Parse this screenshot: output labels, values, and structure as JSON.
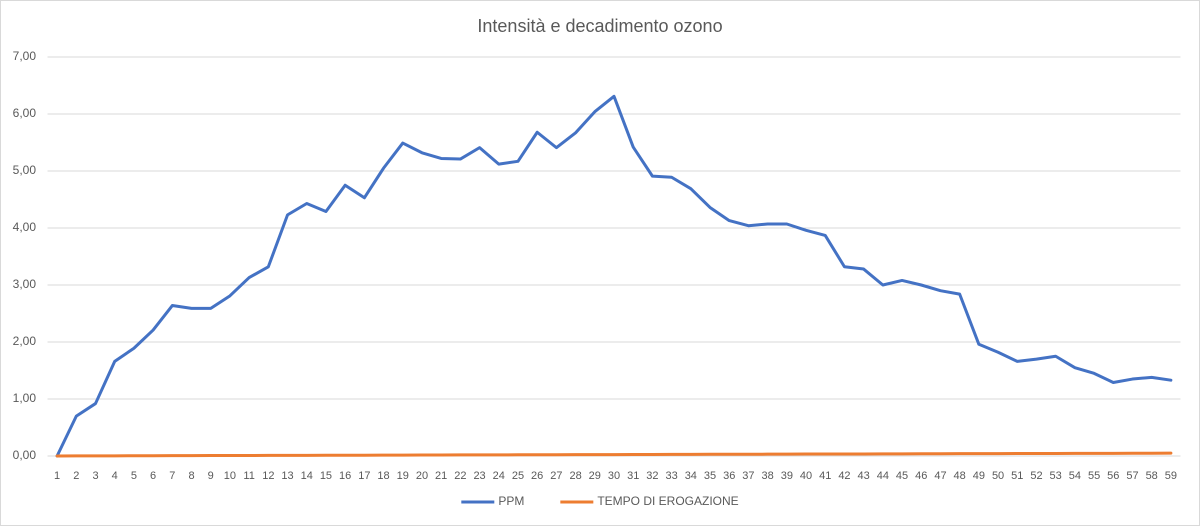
{
  "chart_data": {
    "type": "line",
    "title": "Intensità e decadimento ozono",
    "categories": [
      "1",
      "2",
      "3",
      "4",
      "5",
      "6",
      "7",
      "8",
      "9",
      "10",
      "11",
      "12",
      "13",
      "14",
      "15",
      "16",
      "17",
      "18",
      "19",
      "20",
      "21",
      "22",
      "23",
      "24",
      "25",
      "26",
      "27",
      "28",
      "29",
      "30",
      "31",
      "32",
      "33",
      "34",
      "35",
      "36",
      "37",
      "38",
      "39",
      "40",
      "41",
      "42",
      "43",
      "44",
      "45",
      "46",
      "47",
      "48",
      "49",
      "50",
      "51",
      "52",
      "53",
      "54",
      "55",
      "56",
      "57",
      "58",
      "59"
    ],
    "series": [
      {
        "name": "PPM",
        "color": "#4472c4",
        "values": [
          0,
          0.7,
          0.92,
          1.66,
          1.89,
          2.21,
          2.64,
          2.59,
          2.59,
          2.81,
          3.13,
          3.32,
          4.23,
          4.43,
          4.29,
          4.75,
          4.53,
          5.05,
          5.49,
          5.32,
          5.22,
          5.21,
          5.41,
          5.12,
          5.17,
          5.68,
          5.41,
          5.67,
          6.04,
          6.31,
          5.42,
          4.91,
          4.89,
          4.69,
          4.36,
          4.13,
          4.04,
          4.07,
          4.07,
          3.96,
          3.87,
          3.32,
          3.28,
          3.0,
          3.08,
          3.0,
          2.9,
          2.84,
          1.96,
          1.82,
          1.66,
          1.7,
          1.75,
          1.55,
          1.45,
          1.29,
          1.35,
          1.38,
          1.33
        ]
      },
      {
        "name": "TEMPO DI EROGAZIONE",
        "color": "#ed7d31",
        "values": [
          0.001,
          0.002,
          0.003,
          0.003,
          0.004,
          0.005,
          0.006,
          0.007,
          0.008,
          0.008,
          0.009,
          0.01,
          0.011,
          0.012,
          0.013,
          0.014,
          0.014,
          0.015,
          0.016,
          0.017,
          0.018,
          0.019,
          0.019,
          0.02,
          0.021,
          0.022,
          0.023,
          0.024,
          0.025,
          0.025,
          0.026,
          0.027,
          0.028,
          0.029,
          0.03,
          0.03,
          0.031,
          0.032,
          0.033,
          0.034,
          0.035,
          0.036,
          0.036,
          0.037,
          0.038,
          0.039,
          0.04,
          0.041,
          0.041,
          0.042,
          0.043,
          0.044,
          0.045,
          0.046,
          0.047,
          0.047,
          0.048,
          0.049,
          0.05
        ]
      }
    ],
    "ylim": [
      0,
      7
    ],
    "yticks": [
      {
        "value": 0,
        "label": "0,00"
      },
      {
        "value": 1,
        "label": "1,00"
      },
      {
        "value": 2,
        "label": "2,00"
      },
      {
        "value": 3,
        "label": "3,00"
      },
      {
        "value": 4,
        "label": "4,00"
      },
      {
        "value": 5,
        "label": "5,00"
      },
      {
        "value": 6,
        "label": "6,00"
      },
      {
        "value": 7,
        "label": "7,00"
      }
    ],
    "grid": true,
    "legend": "bottom"
  }
}
